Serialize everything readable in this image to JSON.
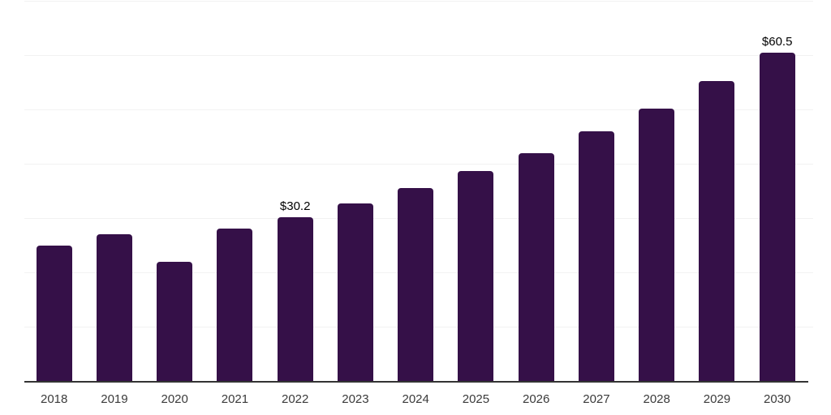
{
  "chart_data": {
    "type": "bar",
    "title": "",
    "xlabel": "",
    "ylabel": "",
    "categories": [
      "2018",
      "2019",
      "2020",
      "2021",
      "2022",
      "2023",
      "2024",
      "2025",
      "2026",
      "2027",
      "2028",
      "2029",
      "2030"
    ],
    "values": [
      25.0,
      27.0,
      22.0,
      28.0,
      30.2,
      32.7,
      35.5,
      38.6,
      41.9,
      45.9,
      50.1,
      55.2,
      60.5
    ],
    "data_labels": [
      null,
      null,
      null,
      null,
      "$30.2",
      null,
      null,
      null,
      null,
      null,
      null,
      null,
      "$60.5"
    ],
    "ylim": [
      0,
      70
    ],
    "gridline_step": 10,
    "grid": true,
    "legend": "none",
    "y_axis_tick_labels_visible": false,
    "colors": {
      "bar": "#351048",
      "gridline": "#f2f2f2",
      "axis_line": "#333333",
      "x_tick_label": "#3a3a3a",
      "data_label": "#000000",
      "background": "#ffffff"
    }
  }
}
